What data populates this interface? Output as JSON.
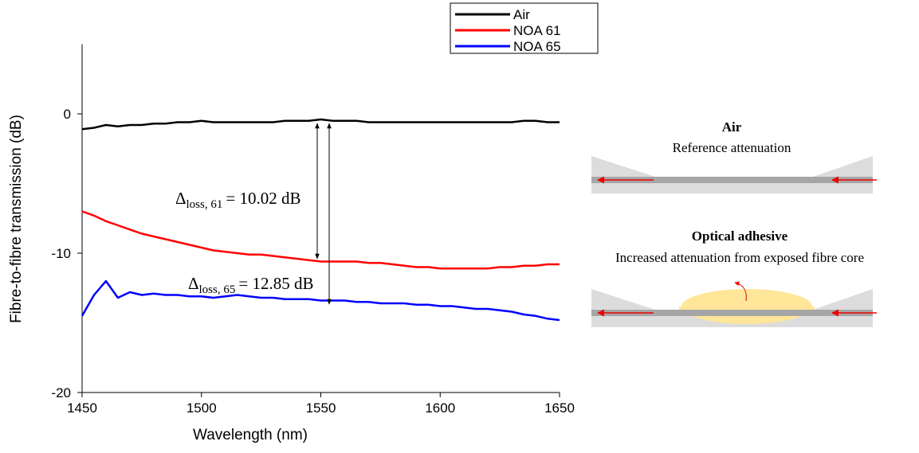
{
  "chart_data": {
    "type": "line",
    "xlabel": "Wavelength (nm)",
    "ylabel": "Fibre-to-fibre transmission (dB)",
    "xlim": [
      1450,
      1650
    ],
    "ylim": [
      -20,
      5
    ],
    "xticks": [
      1450,
      1500,
      1550,
      1600,
      1650
    ],
    "yticks": [
      -20,
      -10,
      0
    ],
    "x": [
      1450,
      1455,
      1460,
      1465,
      1470,
      1475,
      1480,
      1485,
      1490,
      1495,
      1500,
      1505,
      1510,
      1515,
      1520,
      1525,
      1530,
      1535,
      1540,
      1545,
      1550,
      1555,
      1560,
      1565,
      1570,
      1575,
      1580,
      1585,
      1590,
      1595,
      1600,
      1605,
      1610,
      1615,
      1620,
      1625,
      1630,
      1635,
      1640,
      1645,
      1650
    ],
    "series": [
      {
        "name": "Air",
        "color": "#000000",
        "values": [
          -1.1,
          -1.0,
          -0.8,
          -0.9,
          -0.8,
          -0.8,
          -0.7,
          -0.7,
          -0.6,
          -0.6,
          -0.5,
          -0.6,
          -0.6,
          -0.6,
          -0.6,
          -0.6,
          -0.6,
          -0.5,
          -0.5,
          -0.5,
          -0.4,
          -0.5,
          -0.5,
          -0.5,
          -0.6,
          -0.6,
          -0.6,
          -0.6,
          -0.6,
          -0.6,
          -0.6,
          -0.6,
          -0.6,
          -0.6,
          -0.6,
          -0.6,
          -0.6,
          -0.5,
          -0.5,
          -0.6,
          -0.6
        ]
      },
      {
        "name": "NOA 61",
        "color": "#ff0000",
        "values": [
          -7.0,
          -7.3,
          -7.7,
          -8.0,
          -8.3,
          -8.6,
          -8.8,
          -9.0,
          -9.2,
          -9.4,
          -9.6,
          -9.8,
          -9.9,
          -10.0,
          -10.1,
          -10.1,
          -10.2,
          -10.3,
          -10.4,
          -10.5,
          -10.6,
          -10.6,
          -10.6,
          -10.6,
          -10.7,
          -10.7,
          -10.8,
          -10.9,
          -11.0,
          -11.0,
          -11.1,
          -11.1,
          -11.1,
          -11.1,
          -11.1,
          -11.0,
          -11.0,
          -10.9,
          -10.9,
          -10.8,
          -10.8
        ]
      },
      {
        "name": "NOA 65",
        "color": "#0000ff",
        "values": [
          -14.5,
          -13.0,
          -12.0,
          -13.2,
          -12.8,
          -13.0,
          -12.9,
          -13.0,
          -13.0,
          -13.1,
          -13.1,
          -13.2,
          -13.1,
          -13.0,
          -13.1,
          -13.2,
          -13.2,
          -13.3,
          -13.3,
          -13.3,
          -13.4,
          -13.4,
          -13.4,
          -13.5,
          -13.5,
          -13.6,
          -13.6,
          -13.6,
          -13.7,
          -13.7,
          -13.8,
          -13.8,
          -13.9,
          -14.0,
          -14.0,
          -14.1,
          -14.2,
          -14.4,
          -14.5,
          -14.7,
          -14.8
        ]
      }
    ],
    "annotations": [
      {
        "symbol": "Δ",
        "subscript": "loss, 61",
        "text": "= 10.02 dB"
      },
      {
        "symbol": "Δ",
        "subscript": "loss, 65",
        "text": "= 12.85 dB"
      }
    ]
  },
  "diagram": {
    "panels": [
      {
        "title": "Air",
        "subtitle": "Reference attenuation"
      },
      {
        "title": "Optical adhesive",
        "subtitle": "Increased attenuation from exposed fibre core"
      }
    ]
  }
}
